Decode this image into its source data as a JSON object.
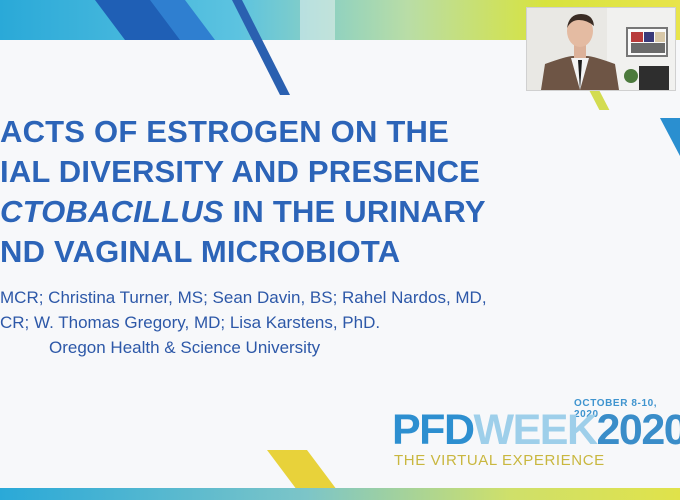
{
  "slide": {
    "title_lines": [
      {
        "text": "ACTS OF ESTROGEN ON THE",
        "italic": ""
      },
      {
        "text": "IAL DIVERSITY AND PRESENCE",
        "italic": ""
      },
      {
        "text": " IN THE URINARY",
        "italic": "CTOBACILLUS"
      },
      {
        "text": "ND VAGINAL MICROBIOTA",
        "italic": ""
      }
    ],
    "authors_lines": [
      "MCR; Christina Turner, MS; Sean Davin, BS; Rahel Nardos, MD,",
      "CR; W. Thomas Gregory, MD; Lisa Karstens, PhD."
    ],
    "affiliation": "Oregon Health & Science University"
  },
  "logo": {
    "date": "OCTOBER 8-10, 2020",
    "pfd": "PFD",
    "week": "WEEK",
    "year": "2020",
    "tagline": "THE VIRTUAL EXPERIENCE"
  },
  "colors": {
    "title": "#2c64b8",
    "brand_blue": "#2d8fd0",
    "accent_yellow": "#e8d23a"
  }
}
